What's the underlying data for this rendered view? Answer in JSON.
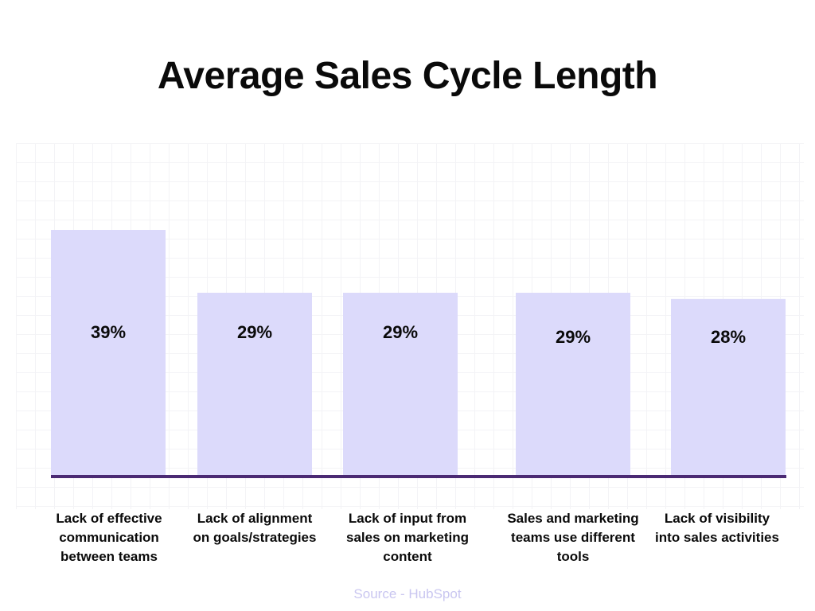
{
  "chart_data": {
    "type": "bar",
    "title": "Average Sales Cycle Length",
    "categories": [
      "Lack of effective communication between teams",
      "Lack of alignment on goals/strategies",
      "Lack of input from sales on marketing content",
      "Sales and marketing teams use different tools",
      "Lack of visibility into sales activities"
    ],
    "values": [
      39,
      29,
      29,
      29,
      28
    ],
    "value_labels": [
      "39%",
      "29%",
      "29%",
      "29%",
      "28%"
    ],
    "unit": "%",
    "ylim": [
      0,
      39
    ],
    "grid": false,
    "legend": "none",
    "bar_color": "#dcdafb",
    "baseline_color": "#4b2a73"
  },
  "source": "Source - HubSpot"
}
